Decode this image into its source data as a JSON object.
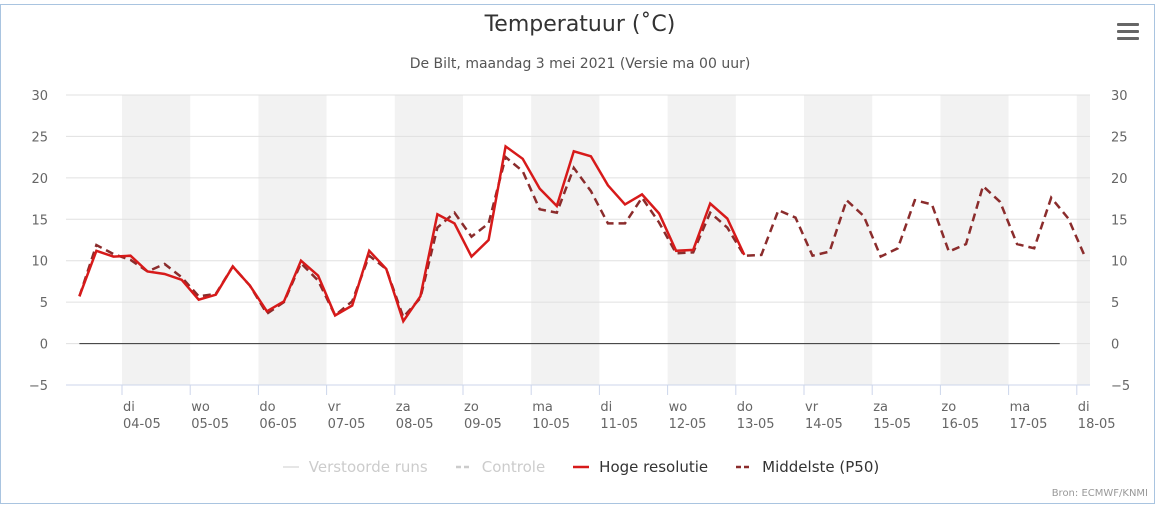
{
  "title": "Temperatuur (˚C)",
  "subtitle": "De Bilt, maandag 3 mei 2021 (Versie ma 00 uur)",
  "menu_icon": "hamburger-menu-icon",
  "credits": "Bron: ECMWF/KNMI",
  "colors": {
    "hoge_resolutie": "#d71a1a",
    "middelste": "#8b2c2c",
    "legend_inactive": "#cccccc",
    "band": "#f2f2f2",
    "grid": "#e0e0e0",
    "zero_line": "#333333",
    "axis_text": "#666666"
  },
  "legend": [
    {
      "label": "Verstoorde runs",
      "style": "thin",
      "active": false
    },
    {
      "label": "Controle",
      "style": "dash",
      "active": false
    },
    {
      "label": "Hoge resolutie",
      "style": "solid",
      "active": true
    },
    {
      "label": "Middelste (P50)",
      "style": "dash",
      "active": true
    }
  ],
  "chart_data": {
    "type": "line",
    "title": "Temperatuur (˚C)",
    "subtitle": "De Bilt, maandag 3 mei 2021 (Versie ma 00 uur)",
    "xlabel": "",
    "ylabel": "",
    "ylim": [
      -5,
      30
    ],
    "yticks": [
      -5,
      0,
      5,
      10,
      15,
      20,
      25,
      30
    ],
    "y_axis_both_sides": true,
    "grid": true,
    "legend_position": "bottom",
    "x_unit": "hours since 03-05 00:00",
    "xlim": [
      0,
      348
    ],
    "day_ticks": [
      {
        "day": "di",
        "date": "04-05",
        "hour": 24
      },
      {
        "day": "wo",
        "date": "05-05",
        "hour": 48
      },
      {
        "day": "do",
        "date": "06-05",
        "hour": 72
      },
      {
        "day": "vr",
        "date": "07-05",
        "hour": 96
      },
      {
        "day": "za",
        "date": "08-05",
        "hour": 120
      },
      {
        "day": "zo",
        "date": "09-05",
        "hour": 144
      },
      {
        "day": "ma",
        "date": "10-05",
        "hour": 168
      },
      {
        "day": "di",
        "date": "11-05",
        "hour": 192
      },
      {
        "day": "wo",
        "date": "12-05",
        "hour": 216
      },
      {
        "day": "do",
        "date": "13-05",
        "hour": 240
      },
      {
        "day": "vr",
        "date": "14-05",
        "hour": 264
      },
      {
        "day": "za",
        "date": "15-05",
        "hour": 288
      },
      {
        "day": "zo",
        "date": "16-05",
        "hour": 312
      },
      {
        "day": "ma",
        "date": "17-05",
        "hour": 336
      },
      {
        "day": "di",
        "date": "18-05",
        "hour": 360
      }
    ],
    "shaded_days_start_hours": [
      24,
      72,
      120,
      168,
      216,
      264,
      312,
      360
    ],
    "zero_line_end_hour": 354,
    "series": [
      {
        "name": "Hoge resolutie",
        "style": "solid",
        "start_hour": 9,
        "step_hours": 6,
        "values": [
          5.7,
          11.2,
          10.5,
          10.6,
          8.7,
          8.4,
          7.7,
          5.3,
          5.9,
          9.3,
          7.0,
          3.9,
          5.1,
          10.0,
          8.2,
          3.4,
          4.6,
          11.2,
          9.0,
          2.7,
          5.7,
          15.6,
          14.5,
          10.5,
          12.5,
          23.8,
          22.3,
          18.7,
          16.6,
          23.2,
          22.6,
          19.1,
          16.8,
          18.0,
          15.7,
          11.2,
          11.3,
          16.9,
          15.1,
          10.7
        ]
      },
      {
        "name": "Middelste (P50)",
        "style": "dashed",
        "start_hour": 9,
        "step_hours": 6,
        "values": [
          5.7,
          11.9,
          10.8,
          10.1,
          8.7,
          9.6,
          8.0,
          5.7,
          6.0,
          9.3,
          7.0,
          3.6,
          5.0,
          9.7,
          7.6,
          3.4,
          5.1,
          10.6,
          9.0,
          3.2,
          5.5,
          14.0,
          15.8,
          12.9,
          14.5,
          22.5,
          20.8,
          16.2,
          15.8,
          21.2,
          18.4,
          14.5,
          14.5,
          17.6,
          14.6,
          10.9,
          11.0,
          15.8,
          14.0,
          10.6,
          10.7,
          16.1,
          15.2,
          10.6,
          11.1,
          17.3,
          15.4,
          10.5,
          11.5,
          17.3,
          16.8,
          11.1,
          12.0,
          19.0,
          17.1,
          12.0,
          11.5,
          17.6,
          15.1,
          10.4
        ]
      }
    ]
  }
}
